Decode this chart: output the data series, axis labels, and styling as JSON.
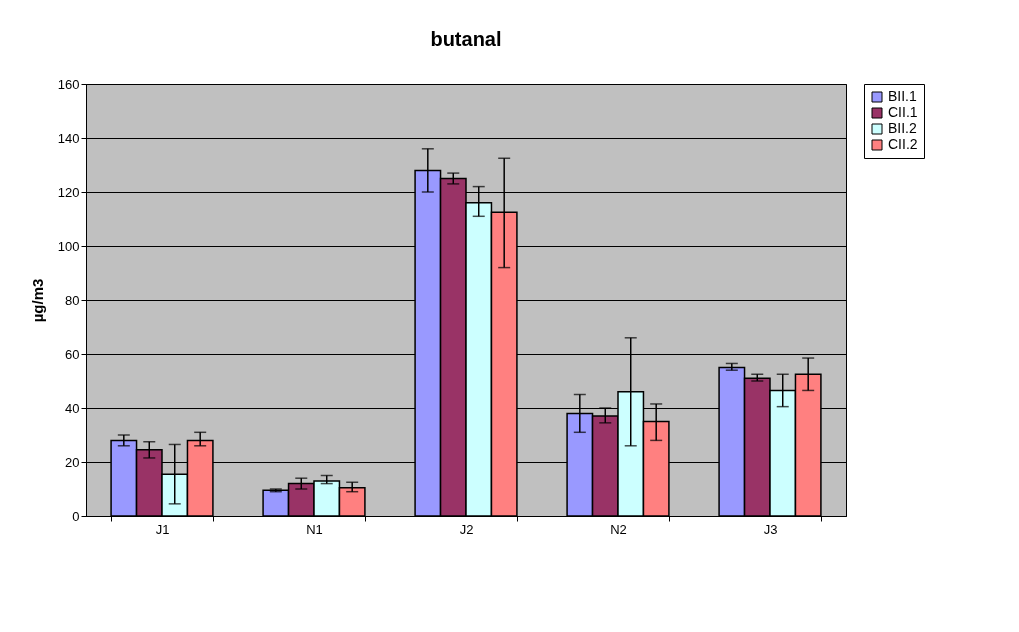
{
  "chart_data": {
    "type": "bar",
    "title": "butanal",
    "ylabel": "µg/m3",
    "categories": [
      "J1",
      "N1",
      "J2",
      "N2",
      "J3"
    ],
    "series": [
      {
        "name": "BII.1",
        "color": "#9999ff",
        "values": [
          28,
          9.5,
          128,
          38,
          55
        ],
        "errors": [
          [
            26,
            30
          ],
          [
            9,
            10
          ],
          [
            120,
            136
          ],
          [
            31,
            45
          ],
          [
            54,
            56.5
          ]
        ]
      },
      {
        "name": "CII.1",
        "color": "#993366",
        "values": [
          24.5,
          12,
          125,
          37,
          51
        ],
        "errors": [
          [
            21.5,
            27.5
          ],
          [
            10,
            14
          ],
          [
            123,
            127
          ],
          [
            34.5,
            40
          ],
          [
            50,
            52.5
          ]
        ]
      },
      {
        "name": "BII.2",
        "color": "#ccffff",
        "values": [
          15.5,
          13,
          116,
          46,
          46.5
        ],
        "errors": [
          [
            4.5,
            26.5
          ],
          [
            12,
            15
          ],
          [
            111,
            122
          ],
          [
            26,
            66
          ],
          [
            40.5,
            52.5
          ]
        ]
      },
      {
        "name": "CII.2",
        "color": "#ff8080",
        "values": [
          28,
          10.5,
          112.5,
          35,
          52.5
        ],
        "errors": [
          [
            26,
            31
          ],
          [
            9,
            12.5
          ],
          [
            92,
            132.5
          ],
          [
            28,
            41.5
          ],
          [
            46.5,
            58.5
          ]
        ]
      }
    ],
    "ylim": [
      0,
      160
    ],
    "yticks": [
      0,
      20,
      40,
      60,
      80,
      100,
      120,
      140,
      160
    ],
    "grid": "y",
    "legend": "right"
  }
}
